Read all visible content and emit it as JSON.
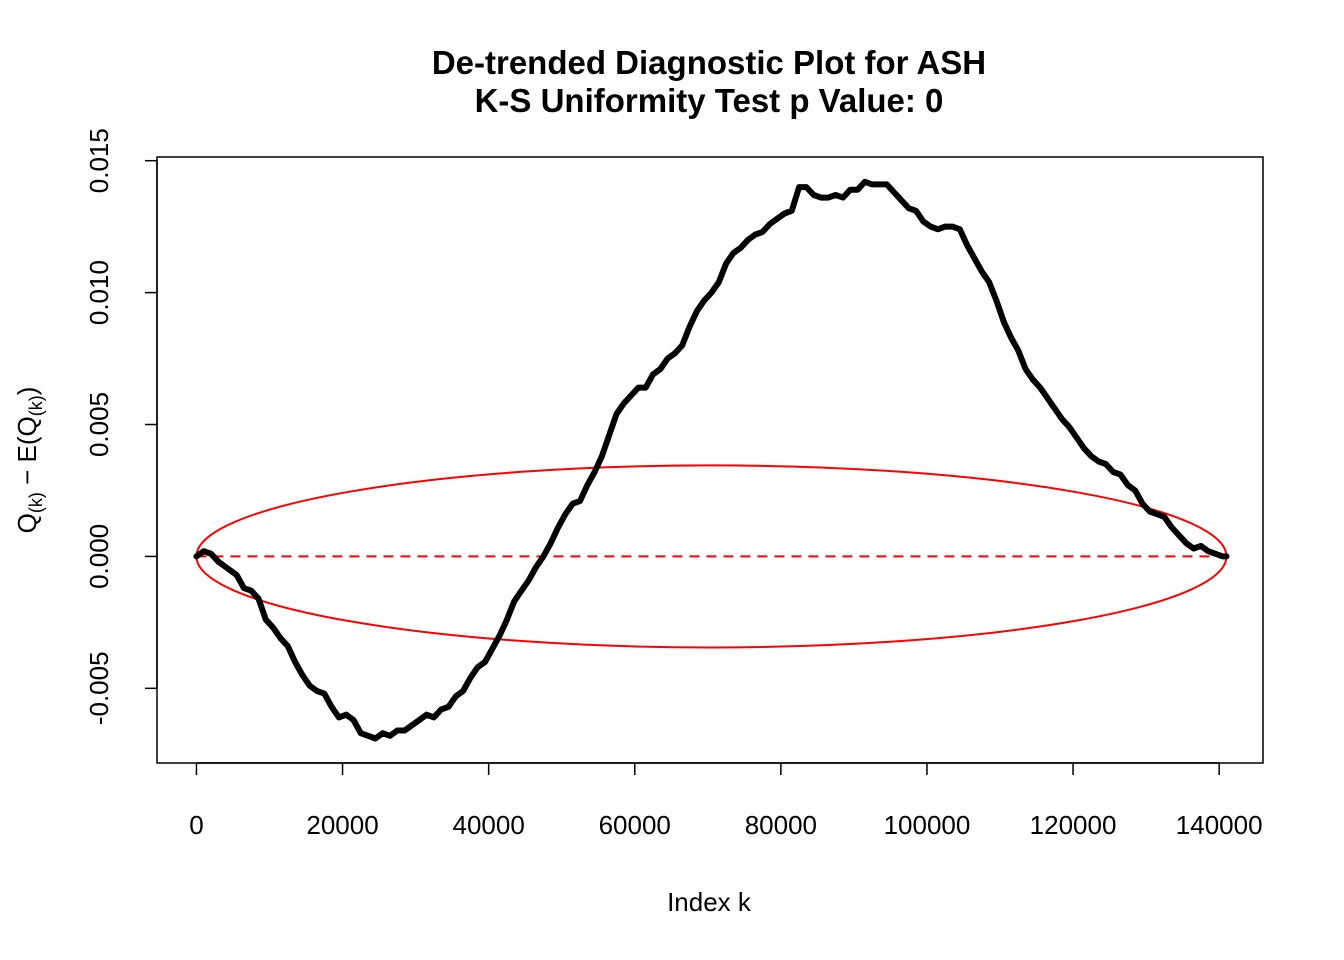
{
  "chart_data": {
    "type": "line",
    "title": "De-trended Diagnostic Plot for ASH",
    "subtitle": "K-S Uniformity Test p Value: 0",
    "xlabel": "Index k",
    "ylabel": "Q(k) − E(Q(k))",
    "ylabel_parts": {
      "q": "Q",
      "q_sub": "(k)",
      "minus": " − E(Q",
      "inner_sub": "(k)",
      "close": ")"
    },
    "xlim": [
      -5400,
      146000
    ],
    "ylim": [
      -0.00783,
      0.01514
    ],
    "x_ticks": [
      0,
      20000,
      40000,
      60000,
      80000,
      100000,
      120000,
      140000
    ],
    "x_tick_labels": [
      "0",
      "20000",
      "40000",
      "60000",
      "80000",
      "100000",
      "120000",
      "140000"
    ],
    "y_ticks": [
      -0.005,
      0.0,
      0.005,
      0.01,
      0.015
    ],
    "y_tick_labels": [
      "-0.005",
      "0.000",
      "0.005",
      "0.010",
      "0.015"
    ],
    "grid": false,
    "series": [
      {
        "color": "#000000",
        "x": [
          0,
          1000,
          2000,
          3000,
          4000,
          5500,
          6500,
          7500,
          8500,
          9500,
          10500,
          11500,
          12500,
          13500,
          14500,
          15500,
          16500,
          17500,
          18500,
          19500,
          20500,
          21500,
          22500,
          23500,
          24500,
          25500,
          26500,
          27500,
          28500,
          29500,
          30500,
          31500,
          32500,
          33500,
          34500,
          35500,
          36500,
          37500,
          38500,
          39500,
          40500,
          41500,
          42500,
          43500,
          44500,
          45500,
          46500,
          47500,
          48500,
          49500,
          50500,
          51500,
          52500,
          53500,
          54500,
          55500,
          56500,
          57500,
          58500,
          59500,
          60500,
          61500,
          62500,
          63500,
          64500,
          65500,
          66500,
          67500,
          68500,
          69500,
          70500,
          71500,
          72500,
          73500,
          74500,
          75500,
          76500,
          77500,
          78500,
          79500,
          80500,
          81500,
          82500,
          83500,
          84500,
          85500,
          86500,
          87500,
          88500,
          89500,
          90500,
          91500,
          92500,
          93500,
          94500,
          95500,
          96500,
          97500,
          98500,
          99500,
          100500,
          101500,
          102500,
          103500,
          104500,
          105500,
          106500,
          107500,
          108500,
          109500,
          110500,
          111500,
          112500,
          113500,
          114500,
          115500,
          116500,
          117500,
          118500,
          119500,
          120500,
          121500,
          122500,
          123500,
          124500,
          125500,
          126500,
          127500,
          128500,
          129500,
          130500,
          131500,
          132500,
          133500,
          134500,
          135500,
          136500,
          137500,
          138500,
          139500,
          140500,
          141000
        ],
        "y": [
          0.0,
          0.0002,
          0.0001,
          -0.0002,
          -0.0004,
          -0.0007,
          -0.0012,
          -0.0013,
          -0.0016,
          -0.0024,
          -0.0027,
          -0.0031,
          -0.0034,
          -0.004,
          -0.0045,
          -0.0049,
          -0.0051,
          -0.0052,
          -0.0057,
          -0.0061,
          -0.006,
          -0.0062,
          -0.0067,
          -0.0068,
          -0.0069,
          -0.0067,
          -0.0068,
          -0.0066,
          -0.0066,
          -0.0064,
          -0.0062,
          -0.006,
          -0.0061,
          -0.0058,
          -0.0057,
          -0.0053,
          -0.0051,
          -0.0046,
          -0.0042,
          -0.004,
          -0.0035,
          -0.003,
          -0.0024,
          -0.0017,
          -0.0013,
          -0.0009,
          -0.0004,
          0.0,
          0.0005,
          0.0011,
          0.0016,
          0.002,
          0.0021,
          0.0027,
          0.0032,
          0.0038,
          0.0046,
          0.0054,
          0.0058,
          0.0061,
          0.0064,
          0.0064,
          0.0069,
          0.0071,
          0.0075,
          0.0077,
          0.008,
          0.0087,
          0.0093,
          0.0097,
          0.01,
          0.0104,
          0.0111,
          0.0115,
          0.0117,
          0.012,
          0.0122,
          0.0123,
          0.0126,
          0.0128,
          0.013,
          0.0131,
          0.014,
          0.014,
          0.0137,
          0.0136,
          0.0136,
          0.0137,
          0.0136,
          0.0139,
          0.0139,
          0.0142,
          0.0141,
          0.0141,
          0.0141,
          0.0138,
          0.0135,
          0.0132,
          0.0131,
          0.0127,
          0.0125,
          0.0124,
          0.0125,
          0.0125,
          0.0124,
          0.0118,
          0.0113,
          0.0108,
          0.0104,
          0.0097,
          0.0089,
          0.0083,
          0.0078,
          0.0071,
          0.0067,
          0.0064,
          0.006,
          0.0056,
          0.0052,
          0.0049,
          0.0045,
          0.0041,
          0.0038,
          0.0036,
          0.0035,
          0.0032,
          0.0031,
          0.0027,
          0.0025,
          0.002,
          0.0017,
          0.0016,
          0.0015,
          0.0011,
          0.0008,
          0.0005,
          0.0003,
          0.0004,
          0.0002,
          0.0001,
          0.0,
          0.0
        ]
      }
    ],
    "reference_line": {
      "y": 0.0,
      "color": "#ff0000",
      "style": "dashed",
      "x_from": 0,
      "x_to": 141000
    },
    "ellipse": {
      "cx": 70500,
      "cy": 0.0,
      "rx": 70500,
      "ry": 0.00345,
      "color": "#ff0000"
    }
  }
}
